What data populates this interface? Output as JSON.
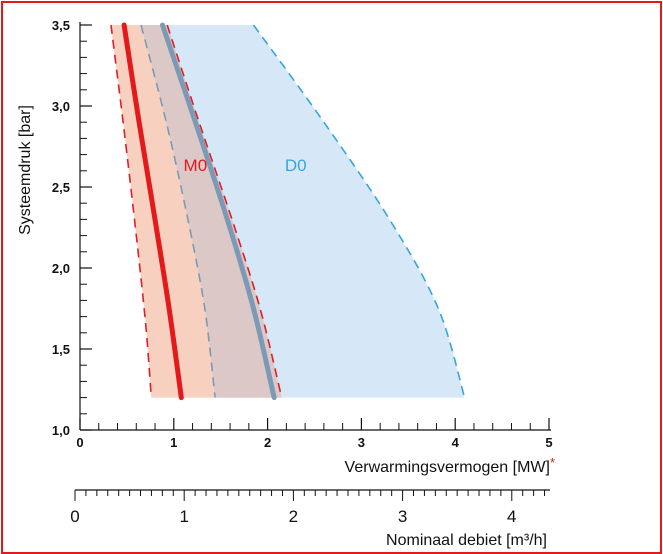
{
  "chart_data": {
    "type": "area",
    "ylabel": "Systeemdruk [bar]",
    "xlabel": "Verwarmingsvermogen [MW]",
    "xlabel_marker": "*",
    "xlabel2": "Nominaal debiet [m³/h]",
    "xlim": [
      0,
      5
    ],
    "ylim": [
      1.0,
      3.5
    ],
    "x_ticks": [
      "0",
      "1",
      "2",
      "3",
      "4",
      "5"
    ],
    "y_ticks": [
      "1,0",
      "1,5",
      "2,0",
      "2,5",
      "3,0",
      "3,5"
    ],
    "x2_ticks": [
      "0",
      "1",
      "2",
      "3",
      "4"
    ],
    "x2_range": [
      0,
      4.35
    ],
    "colors": {
      "m0_line": "#e3191b",
      "m0_band": "#f8d0bf",
      "m0_dash": "#d9202a",
      "d0_line": "#7c9ab6",
      "d0_band": "#d6e8f7",
      "d0_dash": "#35a6da",
      "overlap": "#ddc8c8",
      "inner_dash": "#7c9ab6",
      "frame": "#e3191b"
    },
    "series": [
      {
        "name": "M0",
        "label_pos": {
          "x": 1.23,
          "y": 2.6
        },
        "color": "#e3191b",
        "center": [
          {
            "x": 0.47,
            "y": 3.5
          },
          {
            "x": 0.63,
            "y": 2.9
          },
          {
            "x": 0.8,
            "y": 2.3
          },
          {
            "x": 0.95,
            "y": 1.75
          },
          {
            "x": 1.08,
            "y": 1.2
          }
        ],
        "left": [
          {
            "x": 0.33,
            "y": 3.5
          },
          {
            "x": 0.47,
            "y": 2.85
          },
          {
            "x": 0.6,
            "y": 2.2
          },
          {
            "x": 0.7,
            "y": 1.65
          },
          {
            "x": 0.76,
            "y": 1.2
          }
        ],
        "right": [
          {
            "x": 0.93,
            "y": 3.5
          },
          {
            "x": 1.27,
            "y": 2.9
          },
          {
            "x": 1.62,
            "y": 2.3
          },
          {
            "x": 1.92,
            "y": 1.75
          },
          {
            "x": 2.15,
            "y": 1.2
          }
        ]
      },
      {
        "name": "D0",
        "label_pos": {
          "x": 2.3,
          "y": 2.6
        },
        "color": "#7c9ab6",
        "center": [
          {
            "x": 0.88,
            "y": 3.5
          },
          {
            "x": 1.23,
            "y": 2.9
          },
          {
            "x": 1.57,
            "y": 2.3
          },
          {
            "x": 1.85,
            "y": 1.75
          },
          {
            "x": 2.07,
            "y": 1.2
          }
        ],
        "left": [
          {
            "x": 0.65,
            "y": 3.5
          },
          {
            "x": 0.92,
            "y": 2.9
          },
          {
            "x": 1.15,
            "y": 2.3
          },
          {
            "x": 1.33,
            "y": 1.75
          },
          {
            "x": 1.44,
            "y": 1.2
          }
        ],
        "right": [
          {
            "x": 1.85,
            "y": 3.5
          },
          {
            "x": 2.6,
            "y": 2.9
          },
          {
            "x": 3.3,
            "y": 2.3
          },
          {
            "x": 3.82,
            "y": 1.75
          },
          {
            "x": 4.1,
            "y": 1.2
          }
        ]
      }
    ]
  }
}
